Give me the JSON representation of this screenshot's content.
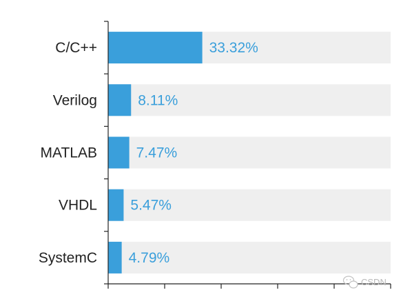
{
  "chart_data": {
    "type": "bar",
    "orientation": "horizontal",
    "categories": [
      "C/C++",
      "Verilog",
      "MATLAB",
      "VHDL",
      "SystemC"
    ],
    "values": [
      33.32,
      8.11,
      7.47,
      5.47,
      4.79
    ],
    "value_labels": [
      "33.32%",
      "8.11%",
      "7.47%",
      "5.47%",
      "4.79%"
    ],
    "xlim": [
      0,
      100
    ],
    "grid": false,
    "legend": "none",
    "colors": {
      "bar": "#3a9fdb",
      "track": "#efefef",
      "label": "#3a9fdb",
      "axis": "#222222",
      "text": "#222222"
    }
  },
  "watermark": {
    "text": "CSDN",
    "icon": "wechat-icon"
  }
}
